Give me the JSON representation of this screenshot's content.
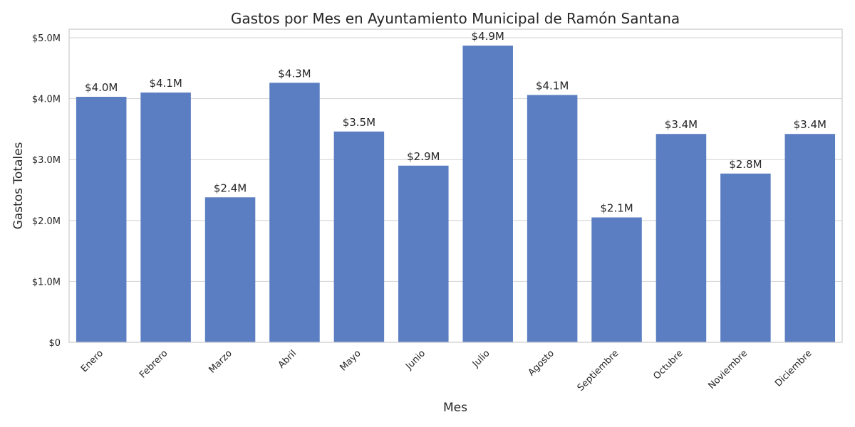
{
  "chart_data": {
    "type": "bar",
    "title": "Gastos por Mes en Ayuntamiento Municipal de Ramón Santana",
    "xlabel": "Mes",
    "ylabel": "Gastos Totales",
    "categories": [
      "Enero",
      "Febrero",
      "Marzo",
      "Abril",
      "Mayo",
      "Junio",
      "Julio",
      "Agosto",
      "Septiembre",
      "Octubre",
      "Noviembre",
      "Diciembre"
    ],
    "values": [
      4030000,
      4100000,
      2380000,
      4260000,
      3460000,
      2900000,
      4870000,
      4060000,
      2050000,
      3420000,
      2770000,
      3420000
    ],
    "value_labels": [
      "$4.0M",
      "$4.1M",
      "$2.4M",
      "$4.3M",
      "$3.5M",
      "$2.9M",
      "$4.9M",
      "$4.1M",
      "$2.1M",
      "$3.4M",
      "$2.8M",
      "$3.4M"
    ],
    "ylim": [
      0,
      5140000
    ],
    "yticks": [
      0,
      1000000,
      2000000,
      3000000,
      4000000,
      5000000
    ],
    "ytick_labels": [
      "$0",
      "$1.0M",
      "$2.0M",
      "$3.0M",
      "$4.0M",
      "$5.0M"
    ],
    "grid": "horizontal",
    "bar_color": "#5b7ec2"
  }
}
